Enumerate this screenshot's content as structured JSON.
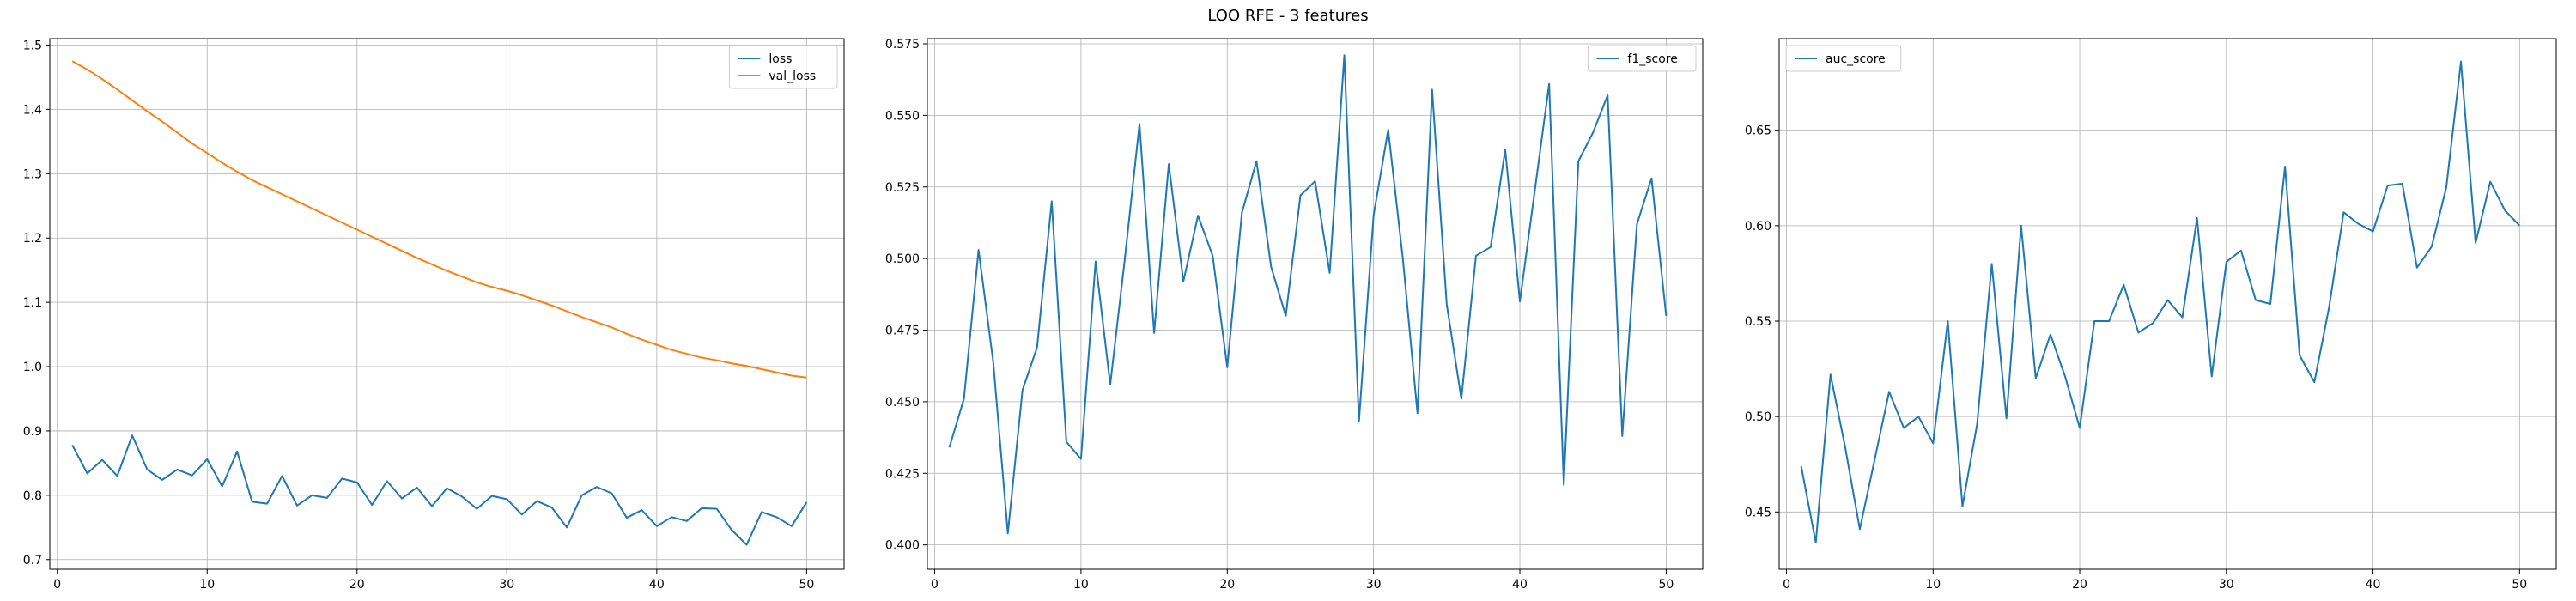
{
  "figure": {
    "title": "LOO RFE - 3 features"
  },
  "chart_data": [
    {
      "type": "line",
      "title": "",
      "xlabel": "",
      "ylabel": "",
      "grid": true,
      "legend": "top-right",
      "xlim": [
        -0.5,
        52.5
      ],
      "ylim": [
        0.685,
        1.51
      ],
      "xticks": [
        0,
        10,
        20,
        30,
        40,
        50
      ],
      "yticks": [
        0.7,
        0.8,
        0.9,
        1.0,
        1.1,
        1.2,
        1.3,
        1.4,
        1.5
      ],
      "ytick_labels": [
        "0.7",
        "0.8",
        "0.9",
        "1.0",
        "1.1",
        "1.2",
        "1.3",
        "1.4",
        "1.5"
      ],
      "x": [
        1,
        2,
        3,
        4,
        5,
        6,
        7,
        8,
        9,
        10,
        11,
        12,
        13,
        14,
        15,
        16,
        17,
        18,
        19,
        20,
        21,
        22,
        23,
        24,
        25,
        26,
        27,
        28,
        29,
        30,
        31,
        32,
        33,
        34,
        35,
        36,
        37,
        38,
        39,
        40,
        41,
        42,
        43,
        44,
        45,
        46,
        47,
        48,
        49,
        50
      ],
      "series": [
        {
          "name": "loss",
          "color": "#1f77b4",
          "values": [
            0.878,
            0.834,
            0.855,
            0.83,
            0.893,
            0.84,
            0.824,
            0.84,
            0.831,
            0.856,
            0.814,
            0.868,
            0.79,
            0.787,
            0.83,
            0.784,
            0.8,
            0.796,
            0.826,
            0.82,
            0.785,
            0.822,
            0.795,
            0.812,
            0.783,
            0.811,
            0.798,
            0.779,
            0.799,
            0.794,
            0.77,
            0.791,
            0.781,
            0.75,
            0.8,
            0.813,
            0.803,
            0.765,
            0.777,
            0.752,
            0.766,
            0.76,
            0.78,
            0.779,
            0.746,
            0.723,
            0.774,
            0.766,
            0.752,
            0.789
          ]
        },
        {
          "name": "val_loss",
          "color": "#ff7f0e",
          "values": [
            1.475,
            1.462,
            1.447,
            1.431,
            1.414,
            1.397,
            1.381,
            1.364,
            1.347,
            1.332,
            1.317,
            1.303,
            1.29,
            1.279,
            1.268,
            1.257,
            1.246,
            1.235,
            1.224,
            1.213,
            1.202,
            1.191,
            1.18,
            1.169,
            1.159,
            1.149,
            1.14,
            1.131,
            1.124,
            1.118,
            1.111,
            1.103,
            1.095,
            1.086,
            1.077,
            1.069,
            1.061,
            1.051,
            1.042,
            1.034,
            1.026,
            1.02,
            1.014,
            1.01,
            1.005,
            1.001,
            0.996,
            0.991,
            0.986,
            0.983
          ]
        }
      ]
    },
    {
      "type": "line",
      "title": "",
      "xlabel": "",
      "ylabel": "",
      "grid": true,
      "legend": "top-right",
      "xlim": [
        -0.5,
        52.5
      ],
      "ylim": [
        0.3915,
        0.5768
      ],
      "xticks": [
        0,
        10,
        20,
        30,
        40,
        50
      ],
      "yticks": [
        0.4,
        0.425,
        0.45,
        0.475,
        0.5,
        0.525,
        0.55,
        0.575
      ],
      "ytick_labels": [
        "0.400",
        "0.425",
        "0.450",
        "0.475",
        "0.500",
        "0.525",
        "0.550",
        "0.575"
      ],
      "x": [
        1,
        2,
        3,
        4,
        5,
        6,
        7,
        8,
        9,
        10,
        11,
        12,
        13,
        14,
        15,
        16,
        17,
        18,
        19,
        20,
        21,
        22,
        23,
        24,
        25,
        26,
        27,
        28,
        29,
        30,
        31,
        32,
        33,
        34,
        35,
        36,
        37,
        38,
        39,
        40,
        41,
        42,
        43,
        44,
        45,
        46,
        47,
        48,
        49,
        50
      ],
      "series": [
        {
          "name": "f1_score",
          "color": "#1f77b4",
          "values": [
            0.434,
            0.451,
            0.503,
            0.464,
            0.404,
            0.454,
            0.469,
            0.52,
            0.436,
            0.43,
            0.499,
            0.456,
            0.5,
            0.547,
            0.474,
            0.533,
            0.492,
            0.515,
            0.501,
            0.462,
            0.516,
            0.534,
            0.497,
            0.48,
            0.522,
            0.527,
            0.495,
            0.571,
            0.443,
            0.515,
            0.545,
            0.5,
            0.446,
            0.559,
            0.484,
            0.451,
            0.501,
            0.504,
            0.538,
            0.485,
            0.523,
            0.561,
            0.421,
            0.534,
            0.544,
            0.557,
            0.438,
            0.512,
            0.528,
            0.48
          ]
        }
      ]
    },
    {
      "type": "line",
      "title": "",
      "xlabel": "",
      "ylabel": "",
      "grid": true,
      "legend": "top-left",
      "xlim": [
        -0.5,
        52.5
      ],
      "ylim": [
        0.42,
        0.698
      ],
      "xticks": [
        0,
        10,
        20,
        30,
        40,
        50
      ],
      "yticks": [
        0.45,
        0.5,
        0.55,
        0.6,
        0.65
      ],
      "ytick_labels": [
        "0.45",
        "0.50",
        "0.55",
        "0.60",
        "0.65"
      ],
      "x": [
        1,
        2,
        3,
        4,
        5,
        6,
        7,
        8,
        9,
        10,
        11,
        12,
        13,
        14,
        15,
        16,
        17,
        18,
        19,
        20,
        21,
        22,
        23,
        24,
        25,
        26,
        27,
        28,
        29,
        30,
        31,
        32,
        33,
        34,
        35,
        36,
        37,
        38,
        39,
        40,
        41,
        42,
        43,
        44,
        45,
        46,
        47,
        48,
        49,
        50
      ],
      "series": [
        {
          "name": "auc_score",
          "color": "#1f77b4",
          "values": [
            0.474,
            0.434,
            0.522,
            0.484,
            0.441,
            0.477,
            0.513,
            0.494,
            0.5,
            0.486,
            0.55,
            0.453,
            0.496,
            0.58,
            0.499,
            0.6,
            0.52,
            0.543,
            0.521,
            0.494,
            0.55,
            0.55,
            0.569,
            0.544,
            0.549,
            0.561,
            0.552,
            0.604,
            0.521,
            0.581,
            0.587,
            0.561,
            0.559,
            0.631,
            0.532,
            0.518,
            0.557,
            0.607,
            0.601,
            0.597,
            0.621,
            0.622,
            0.578,
            0.589,
            0.62,
            0.686,
            0.591,
            0.623,
            0.608,
            0.6
          ]
        }
      ]
    }
  ]
}
